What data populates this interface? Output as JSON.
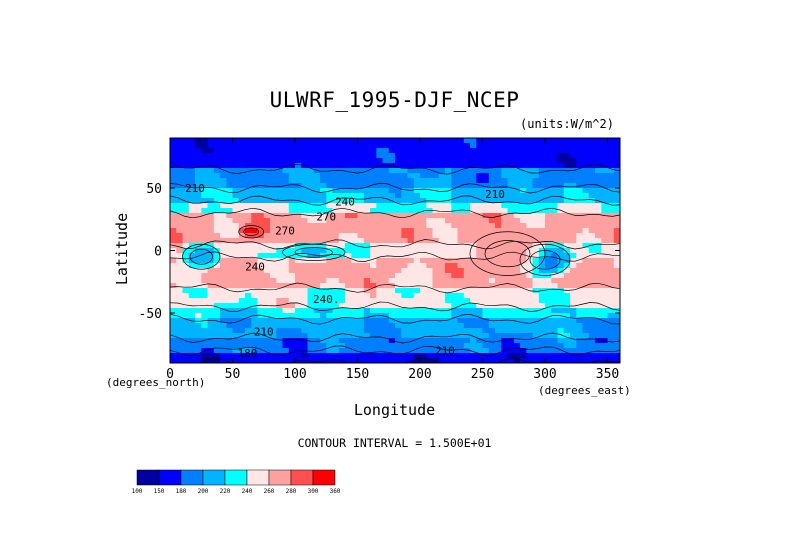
{
  "chart_data": {
    "type": "heatmap",
    "title": "ULWRF_1995-DJF_NCEP",
    "units": "(units:W/m^2)",
    "xlabel": "Longitude",
    "ylabel": "Latitude",
    "x_units_note": "(degrees_east)",
    "y_units_note": "(degrees_north)",
    "xlim": [
      0,
      360
    ],
    "ylim": [
      -90,
      90
    ],
    "x_ticks": [
      0,
      50,
      100,
      150,
      200,
      250,
      300,
      350
    ],
    "y_ticks": [
      -50,
      0,
      50
    ],
    "contour_interval_text": "CONTOUR INTERVAL = 1.500E+01",
    "colorbar": {
      "levels": [
        100,
        150,
        180,
        200,
        220,
        240,
        260,
        280,
        300,
        360
      ],
      "colors": [
        "#0000a0",
        "#0000ff",
        "#0080ff",
        "#00b4ff",
        "#00ffff",
        "#ffe6e6",
        "#ffa0a0",
        "#ff5050",
        "#ff0000"
      ]
    },
    "contour_labels": [
      {
        "text": "210",
        "lon": 20,
        "lat": 47
      },
      {
        "text": "240",
        "lon": 140,
        "lat": 36
      },
      {
        "text": "210",
        "lon": 260,
        "lat": 42
      },
      {
        "text": "270",
        "lon": 125,
        "lat": 24
      },
      {
        "text": "270",
        "lon": 92,
        "lat": 13
      },
      {
        "text": "240",
        "lon": 68,
        "lat": -16
      },
      {
        "text": "240.",
        "lon": 125,
        "lat": -42
      },
      {
        "text": "210",
        "lon": 75,
        "lat": -68
      },
      {
        "text": "180",
        "lon": 62,
        "lat": -85
      },
      {
        "text": "210",
        "lon": 220,
        "lat": -83
      }
    ],
    "bands": [
      {
        "lat": [
          65,
          90
        ],
        "value": 165
      },
      {
        "lat": [
          50,
          65
        ],
        "value": 195
      },
      {
        "lat": [
          40,
          50
        ],
        "value": 215
      },
      {
        "lat": [
          30,
          40
        ],
        "value": 240
      },
      {
        "lat": [
          5,
          30
        ],
        "value": 268
      },
      {
        "lat": [
          -5,
          5
        ],
        "value": 250
      },
      {
        "lat": [
          -30,
          -5
        ],
        "value": 265
      },
      {
        "lat": [
          -45,
          -30
        ],
        "value": 245
      },
      {
        "lat": [
          -55,
          -45
        ],
        "value": 225
      },
      {
        "lat": [
          -70,
          -55
        ],
        "value": 205
      },
      {
        "lat": [
          -80,
          -70
        ],
        "value": 190
      },
      {
        "lat": [
          -90,
          -80
        ],
        "value": 160
      }
    ],
    "features": [
      {
        "lon": [
          10,
          40
        ],
        "lat": [
          -15,
          5
        ],
        "value": 205
      },
      {
        "lon": [
          55,
          75
        ],
        "lat": [
          10,
          20
        ],
        "value": 305
      },
      {
        "lon": [
          280,
          320
        ],
        "lat": [
          -20,
          5
        ],
        "value": 180
      },
      {
        "lon": [
          90,
          140
        ],
        "lat": [
          -8,
          5
        ],
        "value": 215
      },
      {
        "lon": [
          240,
          300
        ],
        "lat": [
          -20,
          15
        ],
        "value": 270
      }
    ]
  }
}
